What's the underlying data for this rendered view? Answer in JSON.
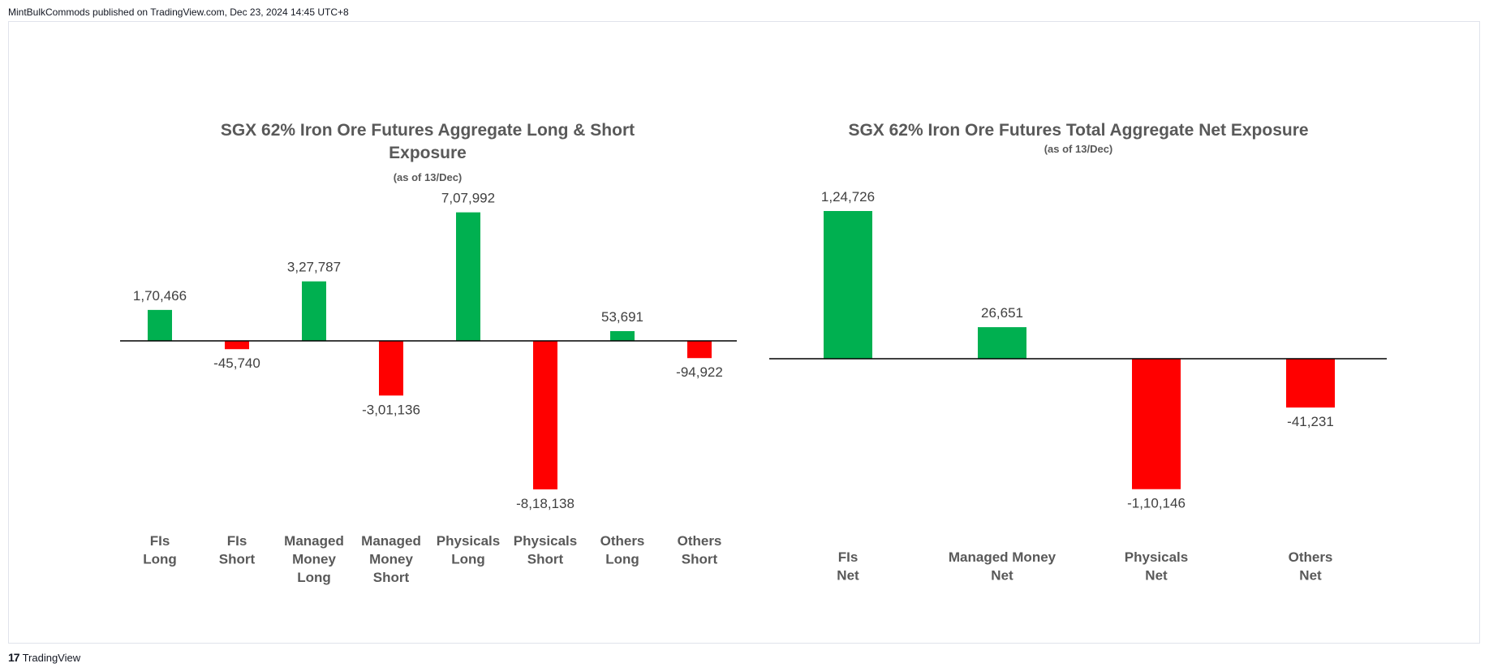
{
  "header": {
    "publish_text": "MintBulkCommods published on TradingView.com, Dec 23, 2024 14:45 UTC+8"
  },
  "footer": {
    "brand": "TradingView",
    "logo_glyph": "17"
  },
  "colors": {
    "positive": "#00b050",
    "negative": "#ff0000",
    "axis": "#000000"
  },
  "chart_data": [
    {
      "type": "bar",
      "title": [
        "SGX 62% Iron Ore Futures Aggregate Long & Short",
        "Exposure"
      ],
      "subtitle": "(as of 13/Dec)",
      "categories": [
        [
          "FIs",
          "Long"
        ],
        [
          "FIs",
          "Short"
        ],
        [
          "Managed",
          "Money",
          "Long"
        ],
        [
          "Managed",
          "Money",
          "Short"
        ],
        [
          "Physicals",
          "Long"
        ],
        [
          "Physicals",
          "Short"
        ],
        [
          "Others",
          "Long"
        ],
        [
          "Others",
          "Short"
        ]
      ],
      "values": [
        170466,
        -45740,
        327787,
        -301136,
        707992,
        -818138,
        53691,
        -94922
      ],
      "data_labels": [
        "1,70,466",
        "-45,740",
        "3,27,787",
        "-3,01,136",
        "7,07,992",
        "-8,18,138",
        "53,691",
        "-94,922"
      ],
      "xlabel": "",
      "ylabel": ""
    },
    {
      "type": "bar",
      "title": [
        "SGX 62% Iron Ore Futures Total Aggregate Net Exposure"
      ],
      "subtitle": "(as of 13/Dec)",
      "categories": [
        [
          "FIs",
          "Net"
        ],
        [
          "Managed Money",
          "Net"
        ],
        [
          "Physicals",
          "Net"
        ],
        [
          "Others",
          "Net"
        ]
      ],
      "values": [
        124726,
        26651,
        -110146,
        -41231
      ],
      "data_labels": [
        "1,24,726",
        "26,651",
        "-1,10,146",
        "-41,231"
      ],
      "xlabel": "",
      "ylabel": ""
    }
  ]
}
